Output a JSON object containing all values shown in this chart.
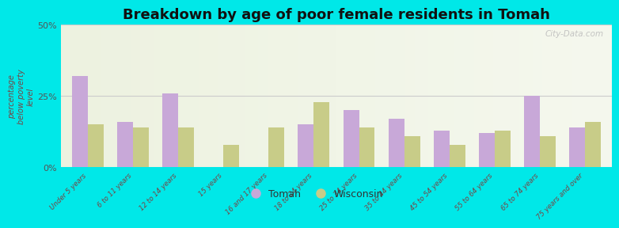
{
  "title": "Breakdown by age of poor female residents in Tomah",
  "ylabel": "percentage\nbelow poverty\nlevel",
  "categories": [
    "Under 5 years",
    "6 to 11 years",
    "12 to 14 years",
    "15 years",
    "16 and 17 years",
    "18 to 24 years",
    "25 to 34 years",
    "35 to 44 years",
    "45 to 54 years",
    "55 to 64 years",
    "65 to 74 years",
    "75 years and over"
  ],
  "tomah_values": [
    32,
    16,
    26,
    0,
    0,
    15,
    20,
    17,
    13,
    12,
    25,
    14
  ],
  "wisconsin_values": [
    15,
    14,
    14,
    8,
    14,
    23,
    14,
    11,
    8,
    13,
    11,
    16
  ],
  "tomah_color": "#c8a8d8",
  "wisconsin_color": "#c8cc88",
  "background_color": "#00e8e8",
  "plot_bg_color_top": "#f5f8ee",
  "plot_bg_color_bottom": "#edf2e0",
  "ylim": [
    0,
    50
  ],
  "yticks": [
    0,
    25,
    50
  ],
  "ytick_labels": [
    "0%",
    "25%",
    "50%"
  ],
  "title_fontsize": 13,
  "legend_labels": [
    "Tomah",
    "Wisconsin"
  ],
  "watermark": "City-Data.com"
}
